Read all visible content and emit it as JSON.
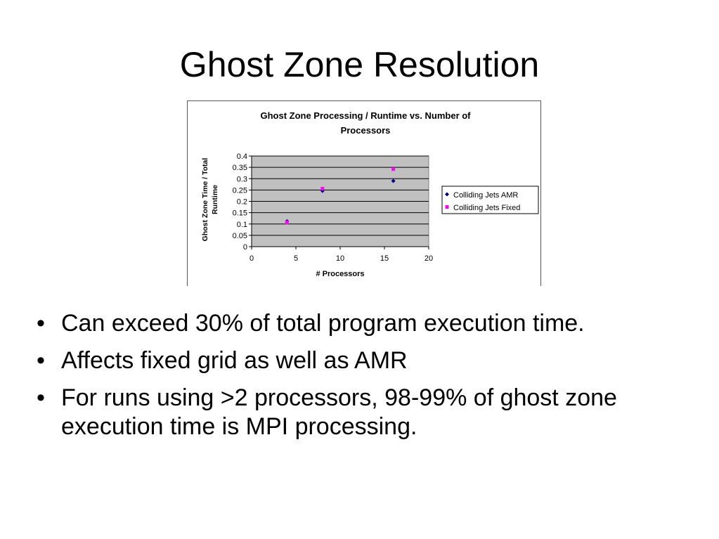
{
  "slide": {
    "title": "Ghost Zone Resolution",
    "bullets": [
      "Can exceed 30% of total program execution time.",
      "Affects fixed grid as well as AMR",
      "For runs using >2 processors, 98-99% of ghost zone execution time is MPI processing."
    ],
    "bullet_char": "•"
  },
  "chart_data": {
    "type": "scatter",
    "title_lines": [
      "Ghost Zone Processing / Runtime vs. Number of",
      "Processors"
    ],
    "xlabel": "# Processors",
    "ylabel_lines": [
      "Ghost Zone Time / Total",
      "Runtime"
    ],
    "xlim": [
      0,
      20
    ],
    "ylim": [
      0,
      0.4
    ],
    "x_ticks": [
      "0",
      "5",
      "10",
      "15",
      "20"
    ],
    "y_ticks": [
      "0",
      "0.05",
      "0.1",
      "0.15",
      "0.2",
      "0.25",
      "0.3",
      "0.35",
      "0.4"
    ],
    "grid": true,
    "plot_background": "#c0c0c0",
    "legend_position": "right",
    "series": [
      {
        "name": "Colliding Jets AMR",
        "marker": "diamond",
        "color": "#000080",
        "x": [
          4,
          8,
          16
        ],
        "y": [
          0.112,
          0.246,
          0.29
        ]
      },
      {
        "name": "Colliding Jets Fixed",
        "marker": "square",
        "color": "#ff00ff",
        "x": [
          4,
          8,
          16
        ],
        "y": [
          0.107,
          0.256,
          0.342
        ]
      }
    ]
  }
}
